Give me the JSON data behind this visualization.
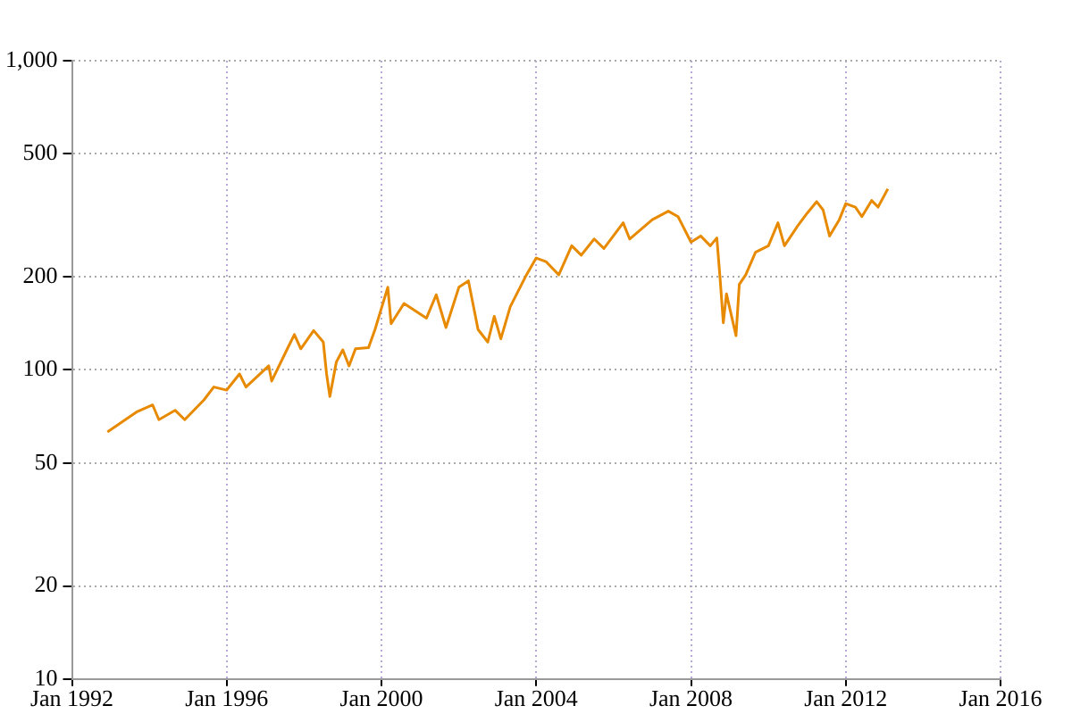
{
  "chart_data": {
    "type": "line",
    "log": "y",
    "grid": true,
    "marker": "none",
    "line_style": "solid",
    "xlim": [
      "1992-01",
      "2016-01"
    ],
    "xticks": [
      {
        "value": "1992-01",
        "label": "Jan 1992"
      },
      {
        "value": "1996-01",
        "label": "Jan 1996"
      },
      {
        "value": "2000-01",
        "label": "Jan 2000"
      },
      {
        "value": "2004-01",
        "label": "Jan 2004"
      },
      {
        "value": "2008-01",
        "label": "Jan 2008"
      },
      {
        "value": "2012-01",
        "label": "Jan 2012"
      },
      {
        "value": "2016-01",
        "label": "Jan 2016"
      }
    ],
    "ylim": [
      10,
      1000
    ],
    "yticks": [
      10,
      20,
      50,
      100,
      200,
      500,
      {
        "value": 1000,
        "label": "1,000"
      }
    ],
    "x": [
      "1992-12",
      "1993-09",
      "1994-02",
      "1994-04",
      "1994-09",
      "1994-12",
      "1995-06",
      "1995-09",
      "1996-01",
      "1996-05",
      "1996-07",
      "1997-02",
      "1997-03",
      "1997-08",
      "1997-10",
      "1997-12",
      "1998-04",
      "1998-07",
      "1998-08",
      "1998-09",
      "1998-11",
      "1999-01",
      "1999-03",
      "1999-05",
      "1999-09",
      "1999-11",
      "2000-03",
      "2000-04",
      "2000-08",
      "2001-03",
      "2001-06",
      "2001-09",
      "2002-01",
      "2002-04",
      "2002-07",
      "2002-10",
      "2002-12",
      "2003-02",
      "2003-05",
      "2003-10",
      "2004-01",
      "2004-04",
      "2004-08",
      "2004-12",
      "2005-03",
      "2005-07",
      "2005-10",
      "2006-04",
      "2006-06",
      "2007-01",
      "2007-06",
      "2007-09",
      "2008-01",
      "2008-04",
      "2008-07",
      "2008-09",
      "2008-10",
      "2008-11",
      "2008-12",
      "2009-03",
      "2009-04",
      "2009-06",
      "2009-09",
      "2010-01",
      "2010-04",
      "2010-06",
      "2010-10",
      "2011-01",
      "2011-04",
      "2011-06",
      "2011-08",
      "2011-11",
      "2012-01",
      "2012-04",
      "2012-06",
      "2012-09",
      "2012-11",
      "2013-02"
    ],
    "series": [
      {
        "color": "#e88a00",
        "values": [
          63,
          73,
          77,
          69,
          74,
          69,
          80,
          88,
          86,
          97,
          88,
          103,
          92,
          118,
          130,
          117,
          134,
          123,
          97,
          82,
          106,
          116,
          103,
          117,
          118,
          135,
          185,
          141,
          164,
          147,
          175,
          137,
          185,
          194,
          135,
          123,
          149,
          126,
          160,
          203,
          230,
          224,
          203,
          252,
          235,
          265,
          247,
          299,
          265,
          306,
          326,
          313,
          259,
          271,
          252,
          267,
          199,
          142,
          176,
          129,
          189,
          203,
          240,
          252,
          299,
          252,
          291,
          321,
          350,
          329,
          271,
          306,
          345,
          336,
          313,
          353,
          336,
          385
        ]
      }
    ]
  }
}
